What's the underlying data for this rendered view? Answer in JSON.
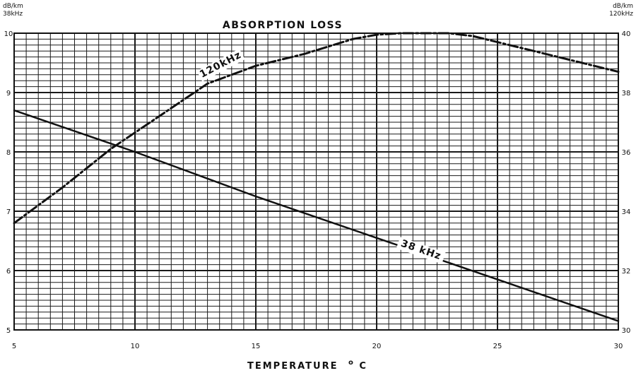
{
  "chart_data": {
    "type": "line",
    "title": "ABSORPTION LOSS",
    "xlabel": "TEMPERATURE",
    "xlabel_superscript": "o",
    "xlabel_unit": "C",
    "xlim": [
      5,
      30
    ],
    "x_ticks": [
      "5",
      "10",
      "15",
      "20",
      "25",
      "30"
    ],
    "ylim_left": [
      5,
      10
    ],
    "y_left_ticks": [
      "5",
      "6",
      "7",
      "8",
      "9",
      "10"
    ],
    "y_left_unit": [
      "dB/km",
      "38kHz"
    ],
    "ylim_right": [
      30,
      40
    ],
    "y_right_ticks": [
      "30",
      "32",
      "34",
      "36",
      "38",
      "40"
    ],
    "y_right_unit": [
      "dB/km",
      "120kHz"
    ],
    "grid": true,
    "series": [
      {
        "name": "38 kHz",
        "axis": "left",
        "style": "solid",
        "x": [
          5,
          10,
          15,
          20,
          25,
          30
        ],
        "y": [
          8.7,
          8.0,
          7.25,
          6.55,
          5.85,
          5.15
        ]
      },
      {
        "name": "120kHz",
        "axis": "right",
        "style": "dashdot",
        "x": [
          5,
          7,
          9,
          11,
          13,
          15,
          17,
          19,
          20,
          21,
          22,
          23,
          24,
          25,
          26,
          27,
          28,
          29,
          30
        ],
        "y": [
          33.6,
          34.8,
          36.1,
          37.2,
          38.3,
          38.9,
          39.3,
          39.8,
          39.95,
          40.0,
          40.0,
          40.0,
          39.9,
          39.7,
          39.5,
          39.3,
          39.1,
          38.9,
          38.7
        ]
      }
    ]
  }
}
